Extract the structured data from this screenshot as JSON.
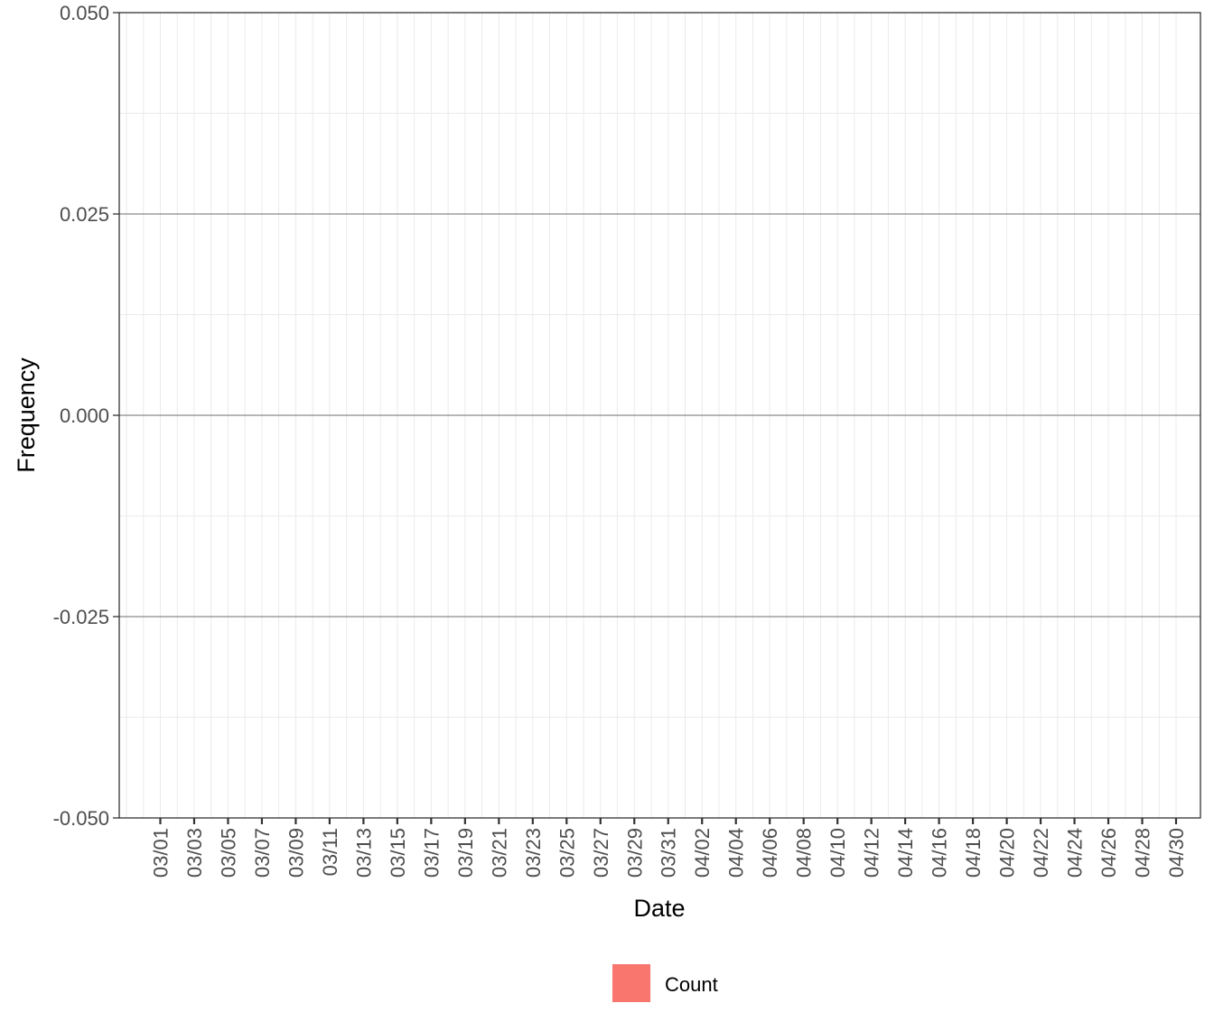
{
  "chart_data": {
    "type": "bar",
    "xlabel": "Date",
    "ylabel": "Frequency",
    "x_ticks": [
      "03/01",
      "03/03",
      "03/05",
      "03/07",
      "03/09",
      "03/11",
      "03/13",
      "03/15",
      "03/17",
      "03/19",
      "03/21",
      "03/23",
      "03/25",
      "03/27",
      "03/29",
      "03/31",
      "04/02",
      "04/04",
      "04/06",
      "04/08",
      "04/10",
      "04/12",
      "04/14",
      "04/16",
      "04/18",
      "04/20",
      "04/22",
      "04/24",
      "04/26",
      "04/28",
      "04/30"
    ],
    "y_ticks": [
      "0.050",
      "0.025",
      "0.000",
      "-0.025",
      "-0.050"
    ],
    "y_tick_values": [
      0.05,
      0.025,
      0,
      -0.025,
      -0.05
    ],
    "ylim": [
      -0.05,
      0.05
    ],
    "xlim": [
      "02/28",
      "04/30"
    ],
    "grid": true,
    "series": [
      {
        "name": "Count",
        "color": "#F8766D",
        "values": []
      }
    ],
    "legend": {
      "position": "bottom",
      "entries": [
        "Count"
      ]
    }
  }
}
